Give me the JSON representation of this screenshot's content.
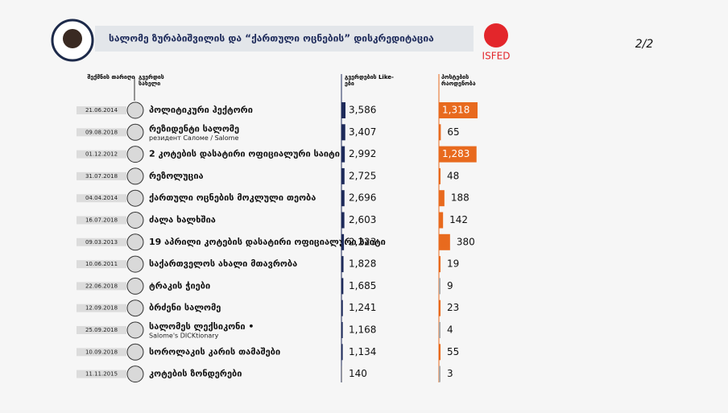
{
  "header": {
    "title": "სალომე ზურაბიშვილის და “ქართული ოცნების” დისკრედიტაცია",
    "logo": "ISFED",
    "page": "2/2"
  },
  "columns": {
    "date": "შექმნის თარიღი",
    "name": "გვერდის სახელი",
    "likes": "გვერდების Like-ები",
    "posts": "პოსტების რაოდენობა"
  },
  "rows": [
    {
      "date": "21.06.2014",
      "name": "პოლიტიკური ჰექტორი",
      "likes": 3586,
      "likes_label": "3,586",
      "posts": 1318,
      "posts_label": "1,318"
    },
    {
      "date": "09.08.2018",
      "name": "რეზიდენტი სალომე",
      "sub": "резидент Саломе / Salome",
      "likes": 3407,
      "likes_label": "3,407",
      "posts": 65
    },
    {
      "date": "01.12.2012",
      "name": "2 კოტების დასატირი ოფიციალური საიტი",
      "likes": 2992,
      "likes_label": "2,992",
      "posts": 1283,
      "posts_label": "1,283"
    },
    {
      "date": "31.07.2018",
      "name": "რეზოლუცია",
      "likes": 2725,
      "likes_label": "2,725",
      "posts": 48
    },
    {
      "date": "04.04.2014",
      "name": "ქართული ოცნების მოკლული თეობა",
      "likes": 2696,
      "likes_label": "2,696",
      "posts": 188
    },
    {
      "date": "16.07.2018",
      "name": "ძალა ხალხშია",
      "likes": 2603,
      "likes_label": "2,603",
      "posts": 142
    },
    {
      "date": "09.03.2013",
      "name": "19 აპრილი კოტების დასატირი ოფიციალური საიტი",
      "likes": 2223,
      "likes_label": "2,223",
      "posts": 380
    },
    {
      "date": "10.06.2011",
      "name": "საქართველოს ახალი მთავრობა",
      "likes": 1828,
      "likes_label": "1,828",
      "posts": 19
    },
    {
      "date": "22.06.2018",
      "name": "ტრაკის ჭიები",
      "likes": 1685,
      "likes_label": "1,685",
      "posts": 9
    },
    {
      "date": "12.09.2018",
      "name": "ბრძენი სალომე",
      "likes": 1241,
      "likes_label": "1,241",
      "posts": 23
    },
    {
      "date": "25.09.2018",
      "name": "სალომეს ლექსიკონი •",
      "sub": "Salome's DICKtionary",
      "likes": 1168,
      "likes_label": "1,168",
      "posts": 4
    },
    {
      "date": "10.09.2018",
      "name": "სოროლაკის კარის თამაშები",
      "likes": 1134,
      "likes_label": "1,134",
      "posts": 55
    },
    {
      "date": "11.11.2015",
      "name": "კოტების ზონდერები",
      "likes": 140,
      "posts": 3
    }
  ]
}
